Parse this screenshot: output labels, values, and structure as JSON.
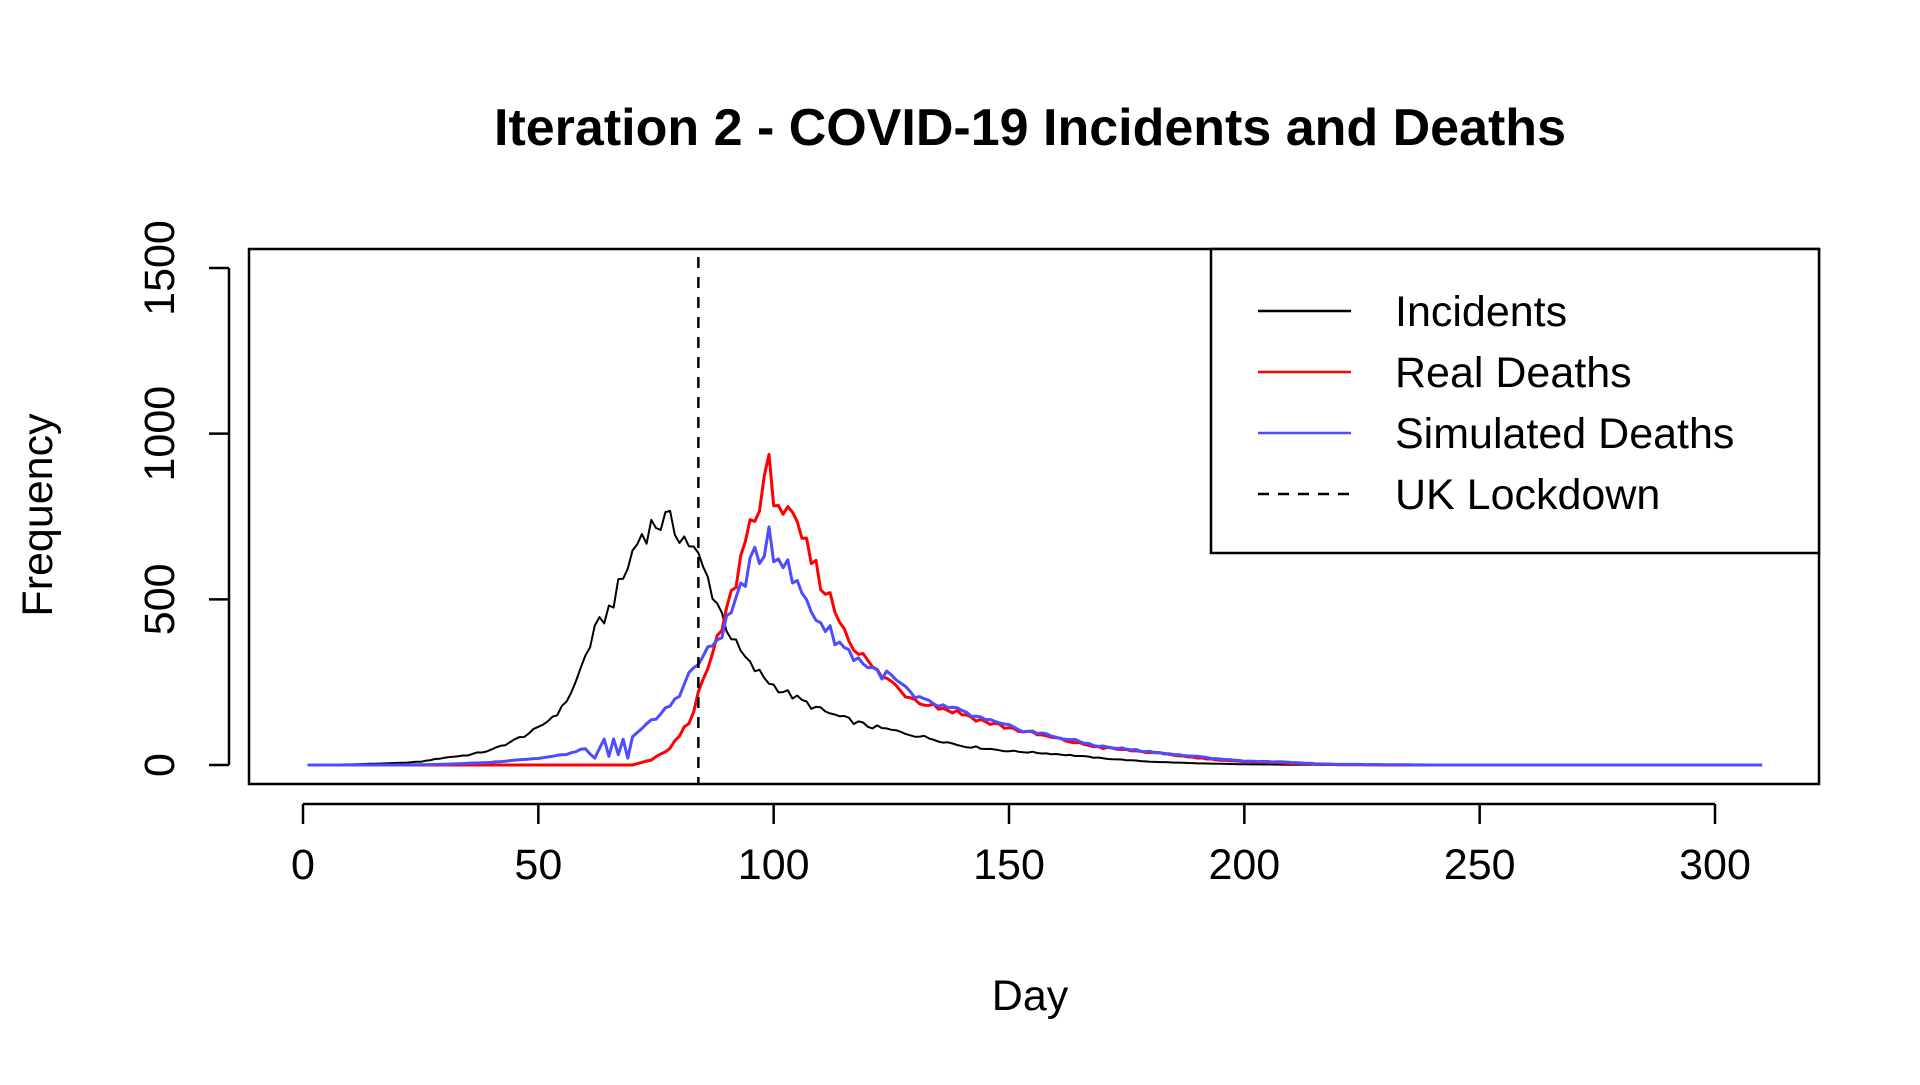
{
  "chart_data": {
    "type": "line",
    "title": "Iteration 2 - COVID-19 Incidents and Deaths",
    "xlabel": "Day",
    "ylabel": "Frequency",
    "xlim": [
      1,
      310
    ],
    "ylim": [
      0,
      1500
    ],
    "x_ticks": [
      0,
      50,
      100,
      150,
      200,
      250,
      300
    ],
    "y_ticks": [
      0,
      500,
      1000,
      1500
    ],
    "grid": false,
    "legend_position": "top-right",
    "legend": [
      {
        "label": "Incidents",
        "color": "#000000",
        "style": "solid"
      },
      {
        "label": "Real Deaths",
        "color": "#ff0000",
        "style": "solid"
      },
      {
        "label": "Simulated Deaths",
        "color": "#4d4dff",
        "style": "solid"
      },
      {
        "label": "UK Lockdown",
        "color": "#000000",
        "style": "dashed"
      }
    ],
    "vline": {
      "label": "UK Lockdown",
      "x": 84,
      "color": "#000000",
      "style": "dashed"
    },
    "series": [
      {
        "name": "Incidents",
        "color": "#000000",
        "points": [
          [
            1,
            0
          ],
          [
            10,
            2
          ],
          [
            20,
            6
          ],
          [
            25,
            10
          ],
          [
            30,
            22
          ],
          [
            35,
            30
          ],
          [
            40,
            45
          ],
          [
            45,
            75
          ],
          [
            50,
            110
          ],
          [
            55,
            170
          ],
          [
            58,
            250
          ],
          [
            60,
            330
          ],
          [
            62,
            400
          ],
          [
            65,
            470
          ],
          [
            68,
            560
          ],
          [
            70,
            640
          ],
          [
            72,
            700
          ],
          [
            75,
            730
          ],
          [
            77,
            735
          ],
          [
            80,
            705
          ],
          [
            82,
            670
          ],
          [
            84,
            620
          ],
          [
            86,
            560
          ],
          [
            88,
            490
          ],
          [
            90,
            420
          ],
          [
            92,
            360
          ],
          [
            95,
            300
          ],
          [
            100,
            240
          ],
          [
            105,
            200
          ],
          [
            110,
            165
          ],
          [
            115,
            140
          ],
          [
            120,
            118
          ],
          [
            125,
            105
          ],
          [
            130,
            90
          ],
          [
            135,
            75
          ],
          [
            140,
            58
          ],
          [
            145,
            50
          ],
          [
            150,
            42
          ],
          [
            155,
            38
          ],
          [
            160,
            33
          ],
          [
            165,
            27
          ],
          [
            170,
            20
          ],
          [
            175,
            15
          ],
          [
            180,
            10
          ],
          [
            190,
            5
          ],
          [
            200,
            2
          ],
          [
            220,
            0
          ],
          [
            250,
            0
          ],
          [
            310,
            0
          ]
        ]
      },
      {
        "name": "Real Deaths",
        "color": "#ff0000",
        "points": [
          [
            1,
            0
          ],
          [
            60,
            0
          ],
          [
            70,
            0
          ],
          [
            74,
            15
          ],
          [
            78,
            50
          ],
          [
            82,
            130
          ],
          [
            85,
            250
          ],
          [
            88,
            370
          ],
          [
            90,
            460
          ],
          [
            92,
            560
          ],
          [
            94,
            680
          ],
          [
            96,
            780
          ],
          [
            97,
            770
          ],
          [
            98,
            830
          ],
          [
            99,
            890
          ],
          [
            100,
            830
          ],
          [
            102,
            770
          ],
          [
            104,
            720
          ],
          [
            106,
            680
          ],
          [
            108,
            620
          ],
          [
            110,
            560
          ],
          [
            112,
            500
          ],
          [
            114,
            440
          ],
          [
            116,
            390
          ],
          [
            118,
            340
          ],
          [
            120,
            310
          ],
          [
            122,
            280
          ],
          [
            125,
            250
          ],
          [
            128,
            215
          ],
          [
            130,
            200
          ],
          [
            135,
            175
          ],
          [
            140,
            155
          ],
          [
            145,
            130
          ],
          [
            150,
            112
          ],
          [
            155,
            95
          ],
          [
            160,
            80
          ],
          [
            165,
            65
          ],
          [
            170,
            52
          ],
          [
            175,
            45
          ],
          [
            180,
            38
          ],
          [
            185,
            30
          ],
          [
            190,
            22
          ],
          [
            195,
            15
          ],
          [
            200,
            10
          ],
          [
            205,
            8
          ],
          [
            210,
            5
          ],
          [
            215,
            3
          ],
          [
            220,
            1
          ],
          [
            230,
            0
          ],
          [
            250,
            0
          ],
          [
            310,
            0
          ]
        ]
      },
      {
        "name": "Simulated Deaths",
        "color": "#4d4dff",
        "points": [
          [
            1,
            0
          ],
          [
            20,
            0
          ],
          [
            30,
            2
          ],
          [
            40,
            8
          ],
          [
            45,
            15
          ],
          [
            50,
            20
          ],
          [
            55,
            30
          ],
          [
            58,
            40
          ],
          [
            60,
            50
          ],
          [
            62,
            20
          ],
          [
            64,
            75
          ],
          [
            65,
            25
          ],
          [
            66,
            80
          ],
          [
            67,
            30
          ],
          [
            68,
            75
          ],
          [
            69,
            20
          ],
          [
            70,
            90
          ],
          [
            72,
            110
          ],
          [
            75,
            140
          ],
          [
            78,
            180
          ],
          [
            80,
            220
          ],
          [
            82,
            270
          ],
          [
            84,
            310
          ],
          [
            86,
            340
          ],
          [
            88,
            380
          ],
          [
            90,
            430
          ],
          [
            92,
            500
          ],
          [
            94,
            570
          ],
          [
            96,
            620
          ],
          [
            97,
            600
          ],
          [
            98,
            660
          ],
          [
            99,
            720
          ],
          [
            100,
            650
          ],
          [
            102,
            620
          ],
          [
            104,
            560
          ],
          [
            106,
            520
          ],
          [
            108,
            470
          ],
          [
            110,
            430
          ],
          [
            112,
            400
          ],
          [
            114,
            370
          ],
          [
            116,
            340
          ],
          [
            118,
            320
          ],
          [
            120,
            300
          ],
          [
            122,
            280
          ],
          [
            125,
            265
          ],
          [
            128,
            230
          ],
          [
            130,
            200
          ],
          [
            135,
            180
          ],
          [
            140,
            160
          ],
          [
            145,
            135
          ],
          [
            150,
            115
          ],
          [
            155,
            100
          ],
          [
            160,
            85
          ],
          [
            165,
            70
          ],
          [
            170,
            55
          ],
          [
            175,
            48
          ],
          [
            180,
            40
          ],
          [
            185,
            32
          ],
          [
            190,
            25
          ],
          [
            195,
            18
          ],
          [
            200,
            12
          ],
          [
            205,
            10
          ],
          [
            210,
            8
          ],
          [
            215,
            4
          ],
          [
            220,
            2
          ],
          [
            230,
            1
          ],
          [
            240,
            0
          ],
          [
            310,
            0
          ]
        ]
      }
    ]
  }
}
